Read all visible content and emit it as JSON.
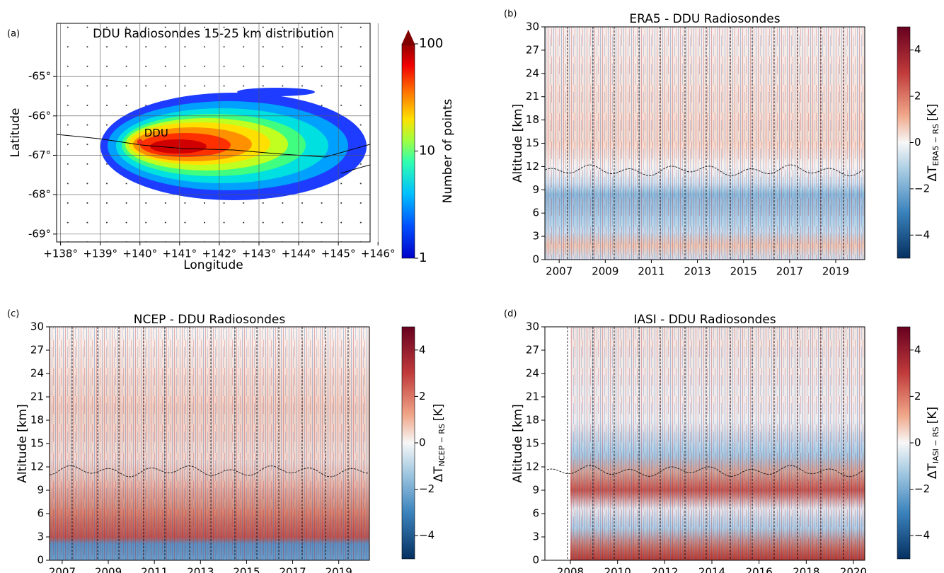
{
  "chart_data": [
    {
      "type": "contour",
      "panel_label": "(a)",
      "title": "DDU Radiosondes 15-25 km distribution",
      "xlabel": "Longitude",
      "ylabel": "Latitude",
      "xlim": [
        137.9,
        145.8
      ],
      "xticks": [
        {
          "value": 138,
          "label": "+138°"
        },
        {
          "value": 139,
          "label": "+139°"
        },
        {
          "value": 140,
          "label": "+140°"
        },
        {
          "value": 141,
          "label": "+141°"
        },
        {
          "value": 142,
          "label": "+142°"
        },
        {
          "value": 143,
          "label": "+143°"
        },
        {
          "value": 144,
          "label": "+144°"
        },
        {
          "value": 145,
          "label": "+145°"
        },
        {
          "value": 146,
          "label": "+146°"
        }
      ],
      "ylim": [
        -69.2,
        -63.65
      ],
      "yticks": [
        {
          "value": -65,
          "label": "-65°"
        },
        {
          "value": -66,
          "label": "-66°"
        },
        {
          "value": -67,
          "label": "-67°"
        },
        {
          "value": -68,
          "label": "-68°"
        },
        {
          "value": -69,
          "label": "-69°"
        }
      ],
      "grid": true,
      "points": [
        {
          "name": "DDU",
          "x": 140.0,
          "y": -66.66,
          "color": "#e8291c"
        }
      ],
      "colorbar": {
        "label": "Number of points",
        "log": true,
        "lim": [
          1,
          100
        ],
        "ticks": [
          1,
          10,
          100
        ]
      }
    },
    {
      "type": "heatmap",
      "panel_label": "(b)",
      "title": "ERA5 - DDU Radiosondes",
      "ylabel": "Altitude [km]",
      "xlim": [
        2006.38,
        2020.26
      ],
      "xticks": [
        2007,
        2009,
        2011,
        2013,
        2015,
        2017,
        2019
      ],
      "ylim": [
        0,
        30
      ],
      "yticks": [
        0,
        3,
        6,
        9,
        12,
        15,
        18,
        21,
        24,
        27,
        30
      ],
      "colorbar": {
        "label": {
          "main": "ΔT",
          "sub": "ERA5 − RS",
          "unit": "[K]"
        },
        "log": false,
        "lim": [
          -5,
          5
        ],
        "ticks": [
          {
            "value": -4,
            "label": "−4"
          },
          {
            "value": -2,
            "label": "−2"
          },
          0,
          2,
          4
        ]
      }
    },
    {
      "type": "heatmap",
      "panel_label": "(c)",
      "title": "NCEP - DDU Radiosondes",
      "ylabel": "Altitude [km]",
      "xlim": [
        2006.45,
        2020.33
      ],
      "xticks": [
        2007,
        2009,
        2011,
        2013,
        2015,
        2017,
        2019
      ],
      "ylim": [
        0,
        30
      ],
      "yticks": [
        0,
        3,
        6,
        9,
        12,
        15,
        18,
        21,
        24,
        27,
        30
      ],
      "colorbar": {
        "label": {
          "main": "ΔT",
          "sub": "NCEP − RS",
          "unit": "[K]"
        },
        "log": false,
        "lim": [
          -5,
          5
        ],
        "ticks": [
          {
            "value": -4,
            "label": "−4"
          },
          {
            "value": -2,
            "label": "−2"
          },
          0,
          2,
          4
        ]
      }
    },
    {
      "type": "heatmap",
      "panel_label": "(d)",
      "title": "IASI - DDU Radiosondes",
      "ylabel": "Altitude [km]",
      "xlim": [
        2006.92,
        2020.48
      ],
      "xticks": [
        2008,
        2010,
        2012,
        2014,
        2016,
        2018,
        2020
      ],
      "ylim": [
        0,
        30
      ],
      "yticks": [
        0,
        3,
        6,
        9,
        12,
        15,
        18,
        21,
        24,
        27,
        30
      ],
      "colorbar": {
        "label": {
          "main": "ΔT",
          "sub": "IASI − RS",
          "unit": "[K]"
        },
        "log": false,
        "lim": [
          -5,
          5
        ],
        "ticks": [
          {
            "value": -4,
            "label": "−4"
          },
          {
            "value": -2,
            "label": "−2"
          },
          0,
          2,
          4
        ]
      }
    }
  ]
}
